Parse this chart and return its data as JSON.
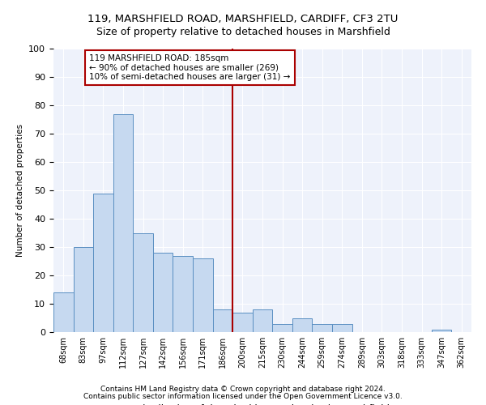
{
  "title1": "119, MARSHFIELD ROAD, MARSHFIELD, CARDIFF, CF3 2TU",
  "title2": "Size of property relative to detached houses in Marshfield",
  "xlabel": "Distribution of detached houses by size in Marshfield",
  "ylabel": "Number of detached properties",
  "categories": [
    "68sqm",
    "83sqm",
    "97sqm",
    "112sqm",
    "127sqm",
    "142sqm",
    "156sqm",
    "171sqm",
    "186sqm",
    "200sqm",
    "215sqm",
    "230sqm",
    "244sqm",
    "259sqm",
    "274sqm",
    "289sqm",
    "303sqm",
    "318sqm",
    "333sqm",
    "347sqm",
    "362sqm"
  ],
  "values": [
    14,
    30,
    49,
    77,
    35,
    28,
    27,
    26,
    8,
    7,
    8,
    3,
    5,
    3,
    3,
    0,
    0,
    0,
    0,
    1,
    0
  ],
  "bar_color": "#c6d9f0",
  "bar_edge_color": "#5a8fc2",
  "background_color": "#eef2fb",
  "grid_color": "#ffffff",
  "vline_x": 8.5,
  "vline_color": "#aa0000",
  "annotation_text": "119 MARSHFIELD ROAD: 185sqm\n← 90% of detached houses are smaller (269)\n10% of semi-detached houses are larger (31) →",
  "annotation_box_color": "#aa0000",
  "footer1": "Contains HM Land Registry data © Crown copyright and database right 2024.",
  "footer2": "Contains public sector information licensed under the Open Government Licence v3.0.",
  "ylim": [
    0,
    100
  ],
  "yticks": [
    0,
    10,
    20,
    30,
    40,
    50,
    60,
    70,
    80,
    90,
    100
  ]
}
